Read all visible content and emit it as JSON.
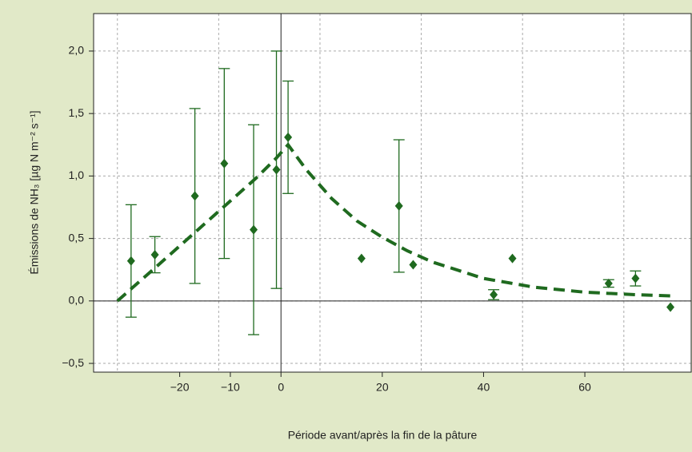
{
  "chart_data": {
    "type": "scatter",
    "x_label": "Période avant/après la fin de la pâture",
    "y_label": "Émissions de NH₃ [µg N m⁻² s⁻¹]",
    "xlim": [
      -37,
      81
    ],
    "ylim": [
      -0.57,
      2.3
    ],
    "xticks": [
      {
        "value": -20,
        "label": "−20"
      },
      {
        "value": -10,
        "label": "−10"
      },
      0,
      20,
      40,
      60
    ],
    "yticks": [
      {
        "value": -0.5,
        "label": "−0,5"
      },
      {
        "value": 0,
        "label": "0,0"
      },
      {
        "value": 0.5,
        "label": "0,5"
      },
      {
        "value": 1,
        "label": "1,0"
      },
      {
        "value": 1.5,
        "label": "1,5"
      },
      {
        "value": 2,
        "label": "2,0"
      }
    ],
    "xgrid": [
      -32.3,
      -12.3,
      7.7,
      27.7,
      47.7,
      67.7
    ],
    "grid": true,
    "series": [
      {
        "color": "#1f6a1f",
        "x": [
          -29.6,
          -24.9,
          -17,
          -11.2,
          -5.4,
          -0.9,
          1.4,
          15.9,
          23.3,
          26.1,
          42,
          45.7,
          64.7,
          70,
          76.9
        ],
        "values": [
          0.32,
          0.37,
          0.84,
          1.1,
          0.57,
          1.05,
          1.31,
          0.34,
          0.76,
          0.29,
          0.05,
          0.34,
          0.14,
          0.18,
          -0.05
        ],
        "errors": [
          0.45,
          0.145,
          0.7,
          0.76,
          0.84,
          0.95,
          0.45,
          null,
          0.53,
          null,
          0.04,
          null,
          0.03,
          0.06,
          null
        ]
      },
      {
        "color": "#1f6a1f",
        "line": "dashed",
        "x": [
          -32.3,
          -25,
          -20,
          -15,
          -10,
          -5,
          -1,
          1.4,
          5,
          10,
          15,
          20,
          25,
          30,
          40,
          50,
          60,
          70,
          77
        ],
        "values": [
          0,
          0.26,
          0.44,
          0.62,
          0.8,
          0.98,
          1.14,
          1.25,
          1.05,
          0.82,
          0.64,
          0.51,
          0.4,
          0.31,
          0.18,
          0.11,
          0.07,
          0.05,
          0.04
        ]
      }
    ]
  }
}
